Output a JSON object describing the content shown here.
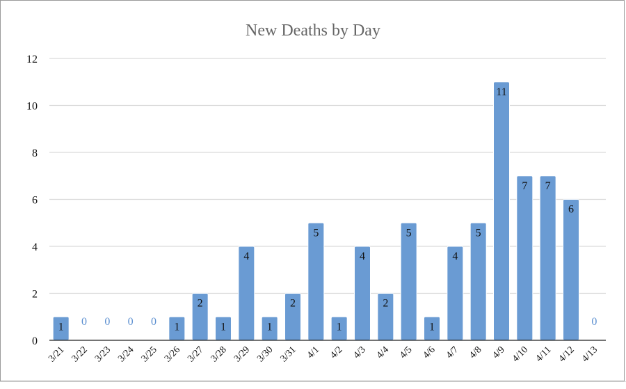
{
  "chart_data": {
    "type": "bar",
    "title": "New Deaths by Day",
    "xlabel": "",
    "ylabel": "",
    "categories": [
      "3/21",
      "3/22",
      "3/23",
      "3/24",
      "3/25",
      "3/26",
      "3/27",
      "3/28",
      "3/29",
      "3/30",
      "3/31",
      "4/1",
      "4/2",
      "4/3",
      "4/4",
      "4/5",
      "4/6",
      "4/7",
      "4/8",
      "4/9",
      "4/10",
      "4/11",
      "4/12",
      "4/13"
    ],
    "values": [
      1,
      0,
      0,
      0,
      0,
      1,
      2,
      1,
      4,
      1,
      2,
      5,
      1,
      4,
      2,
      5,
      1,
      4,
      5,
      11,
      7,
      7,
      6,
      0
    ],
    "ylim": [
      0,
      12
    ],
    "yticks": [
      0,
      2,
      4,
      6,
      8,
      10,
      12
    ],
    "grid": true,
    "legend": "none",
    "bar_color": "#6a9bd3",
    "bar_edge_color": "#ffffff",
    "label_color_inside": "#111111",
    "label_color_zero": "#5b8fd0",
    "grid_color": "#d9d9d9",
    "axis_color": "#222222",
    "title_color": "#666666"
  }
}
